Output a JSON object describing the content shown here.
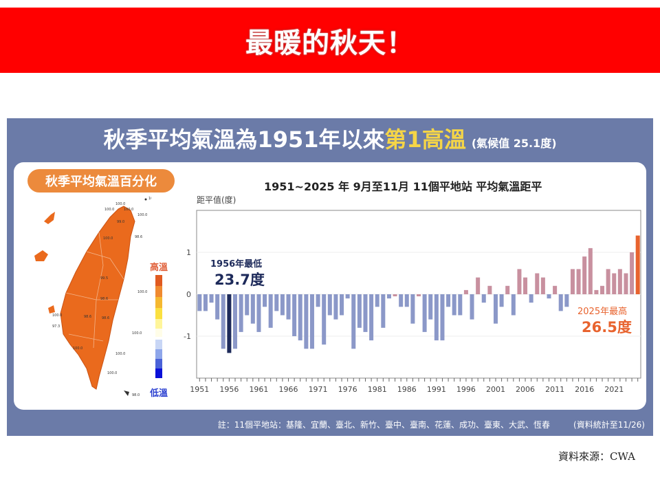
{
  "banner": {
    "title": "最暖的秋天！",
    "color": "#ff0000"
  },
  "panel": {
    "title_prefix": "秋季平均氣溫為1951年以來",
    "title_highlight": "第1高溫",
    "title_note": "(氣候值 25.1度)"
  },
  "map_section": {
    "pill_label": "秋季平均氣溫百分化",
    "legend_high": "高溫",
    "legend_low": "低溫",
    "station_values": [
      "100.0",
      "100.0",
      "100.0",
      "100.0",
      "100.0",
      "98.6",
      "100.0",
      "99.0",
      "100.0",
      "98.6",
      "99.5",
      "98.6",
      "98.6",
      "100.0",
      "97.3",
      "100.0",
      "100.0",
      "100.0",
      "100.0",
      "98.0"
    ]
  },
  "chart": {
    "title": "1951~2025 年  9月至11月 11個平地站 平均氣溫距平",
    "ylabel": "距平值(度)",
    "low_annotation": {
      "line1": "1956年最低",
      "line2": "23.7度"
    },
    "high_annotation": {
      "line1": "2025年最高",
      "line2": "26.5度"
    }
  },
  "footnote": {
    "stations": "註：11個平地站：基隆、宜蘭、臺北、新竹、臺中、臺南、花蓮、成功、臺東、大武、恆春",
    "as_of": "(資料統計至11/26)"
  },
  "source": "資料來源：CWA",
  "chart_data": {
    "type": "bar",
    "title": "1951~2025 年 9月至11月 11個平地站 平均氣溫距平",
    "xlabel": "",
    "ylabel": "距平值(度)",
    "ylim": [
      -2,
      2
    ],
    "yticks": [
      -1,
      0,
      1
    ],
    "xtick_labels": [
      "1951",
      "1956",
      "1961",
      "1966",
      "1971",
      "1976",
      "1981",
      "1986",
      "1991",
      "1996",
      "2001",
      "2006",
      "2011",
      "2016",
      "2021"
    ],
    "grid": true,
    "baseline_climatology": 25.1,
    "categories": [
      1951,
      1952,
      1953,
      1954,
      1955,
      1956,
      1957,
      1958,
      1959,
      1960,
      1961,
      1962,
      1963,
      1964,
      1965,
      1966,
      1967,
      1968,
      1969,
      1970,
      1971,
      1972,
      1973,
      1974,
      1975,
      1976,
      1977,
      1978,
      1979,
      1980,
      1981,
      1982,
      1983,
      1984,
      1985,
      1986,
      1987,
      1988,
      1989,
      1990,
      1991,
      1992,
      1993,
      1994,
      1995,
      1996,
      1997,
      1998,
      1999,
      2000,
      2001,
      2002,
      2003,
      2004,
      2005,
      2006,
      2007,
      2008,
      2009,
      2010,
      2011,
      2012,
      2013,
      2014,
      2015,
      2016,
      2017,
      2018,
      2019,
      2020,
      2021,
      2022,
      2023,
      2024,
      2025
    ],
    "values": [
      -0.4,
      -0.4,
      -0.2,
      -0.6,
      -1.3,
      -1.4,
      -1.3,
      -0.9,
      -0.5,
      -0.7,
      -0.9,
      -0.3,
      -0.8,
      -0.4,
      -0.5,
      -0.6,
      -1.0,
      -1.1,
      -1.3,
      -1.3,
      -0.3,
      -1.2,
      -0.5,
      -0.6,
      -0.5,
      -0.1,
      -1.3,
      -0.8,
      -0.9,
      -1.1,
      -0.3,
      -0.8,
      -0.1,
      0.0,
      -0.3,
      -0.3,
      -0.7,
      0.0,
      -0.9,
      -0.6,
      -1.1,
      -1.1,
      -0.3,
      -0.5,
      -0.5,
      0.1,
      -0.6,
      0.4,
      -0.2,
      0.2,
      -0.7,
      -0.3,
      0.2,
      -0.5,
      0.6,
      0.4,
      -0.2,
      0.5,
      0.4,
      -0.1,
      0.2,
      -0.4,
      -0.3,
      0.6,
      0.6,
      0.9,
      1.1,
      0.1,
      0.2,
      0.6,
      0.5,
      0.6,
      0.5,
      1.0,
      1.4
    ],
    "colors": {
      "negative": "#8b98c8",
      "positive": "#c8909f",
      "min_highlight": "#1d2a5a",
      "max_highlight": "#e8632e"
    },
    "annotations": [
      {
        "year": 1956,
        "text": "1956年最低 23.7度"
      },
      {
        "year": 2025,
        "text": "2025年最高 26.5度"
      }
    ]
  }
}
